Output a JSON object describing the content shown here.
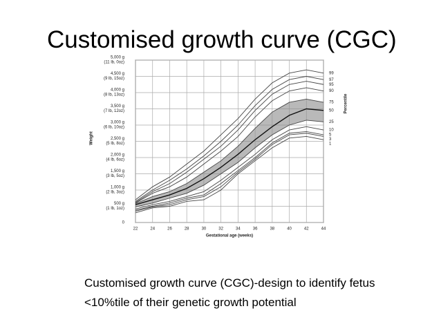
{
  "slide_title": "Customised growth curve (CGC)",
  "caption": [
    "Customised growth curve (CGC)-design to identify fetus",
    "<10%tile of their genetic growth potential"
  ],
  "chart_data": {
    "type": "line",
    "xlabel": "Gestational age (weeks)",
    "ylabel": "Weight",
    "legend_title": "Percentile",
    "x": [
      22,
      24,
      26,
      28,
      30,
      32,
      34,
      36,
      38,
      40,
      42,
      44
    ],
    "xlim": [
      22,
      44
    ],
    "xticks": [
      22,
      24,
      26,
      28,
      30,
      32,
      34,
      36,
      38,
      40,
      42,
      44
    ],
    "ylim": [
      0,
      5000
    ],
    "yticks": [
      0,
      {
        "value": 500,
        "label": "500 g",
        "sublabel": "(1 lb, 1oz)"
      },
      {
        "value": 1000,
        "label": "1,000 g",
        "sublabel": "(2 lb, 3oz)"
      },
      {
        "value": 1500,
        "label": "1,500 g",
        "sublabel": "(3 lb, 5oz)"
      },
      {
        "value": 2000,
        "label": "2,000 g",
        "sublabel": "(4 lb, 6oz)"
      },
      {
        "value": 2500,
        "label": "2,500 g",
        "sublabel": "(5 lb, 8oz)"
      },
      {
        "value": 3000,
        "label": "3,000 g",
        "sublabel": "(6 lb, 10oz)"
      },
      {
        "value": 3500,
        "label": "3,500 g",
        "sublabel": "(7 lb, 12oz)"
      },
      {
        "value": 4000,
        "label": "4,000 g",
        "sublabel": "(8 lb, 13oz)"
      },
      {
        "value": 4500,
        "label": "4,500 g",
        "sublabel": "(9 lb, 15oz)"
      },
      {
        "value": 5000,
        "label": "5,000 g",
        "sublabel": "(11 lb, 0oz)"
      }
    ],
    "grid": true,
    "band_between": [
      4,
      6
    ],
    "band_color": "#8a8a8a",
    "series": [
      {
        "name": "99",
        "color": "#444",
        "values": [
          700,
          1100,
          1400,
          1800,
          2200,
          2700,
          3200,
          3800,
          4300,
          4600,
          4700,
          4600
        ]
      },
      {
        "name": "97",
        "color": "#444",
        "values": [
          650,
          1000,
          1300,
          1650,
          2050,
          2500,
          3000,
          3600,
          4100,
          4400,
          4500,
          4400
        ]
      },
      {
        "name": "95",
        "color": "#444",
        "values": [
          620,
          950,
          1200,
          1550,
          1950,
          2350,
          2850,
          3450,
          3950,
          4250,
          4350,
          4250
        ]
      },
      {
        "name": "90",
        "color": "#444",
        "values": [
          600,
          900,
          1100,
          1400,
          1800,
          2200,
          2650,
          3250,
          3750,
          4050,
          4150,
          4050
        ]
      },
      {
        "name": "75",
        "color": "#444",
        "values": [
          580,
          800,
          950,
          1200,
          1550,
          1900,
          2350,
          2900,
          3400,
          3700,
          3800,
          3700
        ]
      },
      {
        "name": "50",
        "color": "#111",
        "values": [
          550,
          700,
          850,
          1050,
          1350,
          1700,
          2100,
          2550,
          2950,
          3300,
          3500,
          3450
        ]
      },
      {
        "name": "25",
        "color": "#444",
        "values": [
          480,
          600,
          750,
          900,
          1150,
          1500,
          1850,
          2300,
          2700,
          3000,
          3150,
          3100
        ]
      },
      {
        "name": "10",
        "color": "#444",
        "values": [
          420,
          550,
          650,
          800,
          950,
          1300,
          1700,
          2100,
          2550,
          2850,
          2950,
          2850
        ]
      },
      {
        "name": "5",
        "color": "#444",
        "values": [
          380,
          500,
          600,
          750,
          850,
          1200,
          1600,
          2000,
          2450,
          2750,
          2800,
          2700
        ]
      },
      {
        "name": "3",
        "color": "#444",
        "values": [
          350,
          480,
          550,
          700,
          800,
          1100,
          1550,
          1950,
          2400,
          2700,
          2750,
          2650
        ]
      },
      {
        "name": "1",
        "color": "#444",
        "values": [
          300,
          450,
          500,
          650,
          700,
          1000,
          1500,
          1900,
          2300,
          2600,
          2650,
          2550
        ]
      }
    ]
  }
}
